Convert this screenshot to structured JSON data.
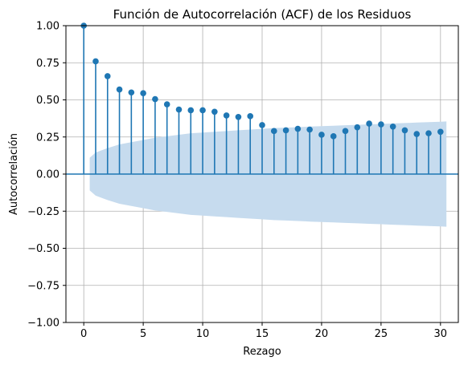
{
  "chart_data": {
    "type": "stem",
    "title": "Función de Autocorrelación (ACF) de los Residuos",
    "xlabel": "Rezago",
    "ylabel": "Autocorrelación",
    "xlim": [
      -1.5,
      31.5
    ],
    "ylim": [
      -1.0,
      1.0
    ],
    "x_ticks": [
      0,
      5,
      10,
      15,
      20,
      25,
      30
    ],
    "y_ticks": [
      -1.0,
      -0.75,
      -0.5,
      -0.25,
      0.0,
      0.25,
      0.5,
      0.75,
      1.0
    ],
    "x_tick_labels": [
      "0",
      "5",
      "10",
      "15",
      "20",
      "25",
      "30"
    ],
    "y_tick_labels": [
      "−1.00",
      "−0.75",
      "−0.50",
      "−0.25",
      "0.00",
      "0.25",
      "0.50",
      "0.75",
      "1.00"
    ],
    "grid": true,
    "series": [
      {
        "lags": [
          0,
          1,
          2,
          3,
          4,
          5,
          6,
          7,
          8,
          9,
          10,
          11,
          12,
          13,
          14,
          15,
          16,
          17,
          18,
          19,
          20,
          21,
          22,
          23,
          24,
          25,
          26,
          27,
          28,
          29,
          30
        ],
        "values": [
          1.0,
          0.76,
          0.66,
          0.57,
          0.55,
          0.545,
          0.505,
          0.47,
          0.435,
          0.43,
          0.43,
          0.42,
          0.395,
          0.385,
          0.39,
          0.33,
          0.29,
          0.295,
          0.305,
          0.3,
          0.265,
          0.255,
          0.29,
          0.315,
          0.34,
          0.335,
          0.32,
          0.295,
          0.27,
          0.275,
          0.285
        ]
      }
    ],
    "confidence_band": {
      "lags": [
        0.5,
        1,
        2,
        3,
        4,
        5,
        6,
        7,
        8,
        9,
        10,
        11,
        12,
        13,
        14,
        15,
        16,
        17,
        18,
        19,
        20,
        21,
        22,
        23,
        24,
        25,
        26,
        27,
        28,
        29,
        30,
        30.5
      ],
      "upper": [
        0.11,
        0.145,
        0.175,
        0.2,
        0.215,
        0.23,
        0.245,
        0.255,
        0.265,
        0.275,
        0.28,
        0.285,
        0.29,
        0.295,
        0.3,
        0.305,
        0.31,
        0.313,
        0.316,
        0.32,
        0.323,
        0.326,
        0.329,
        0.332,
        0.335,
        0.338,
        0.341,
        0.344,
        0.347,
        0.35,
        0.353,
        0.355
      ]
    },
    "colors": {
      "stem": "#1f77b4",
      "band": "#c6dbee",
      "grid": "#b0b0b0",
      "zero_line": "#1f77b4"
    }
  }
}
